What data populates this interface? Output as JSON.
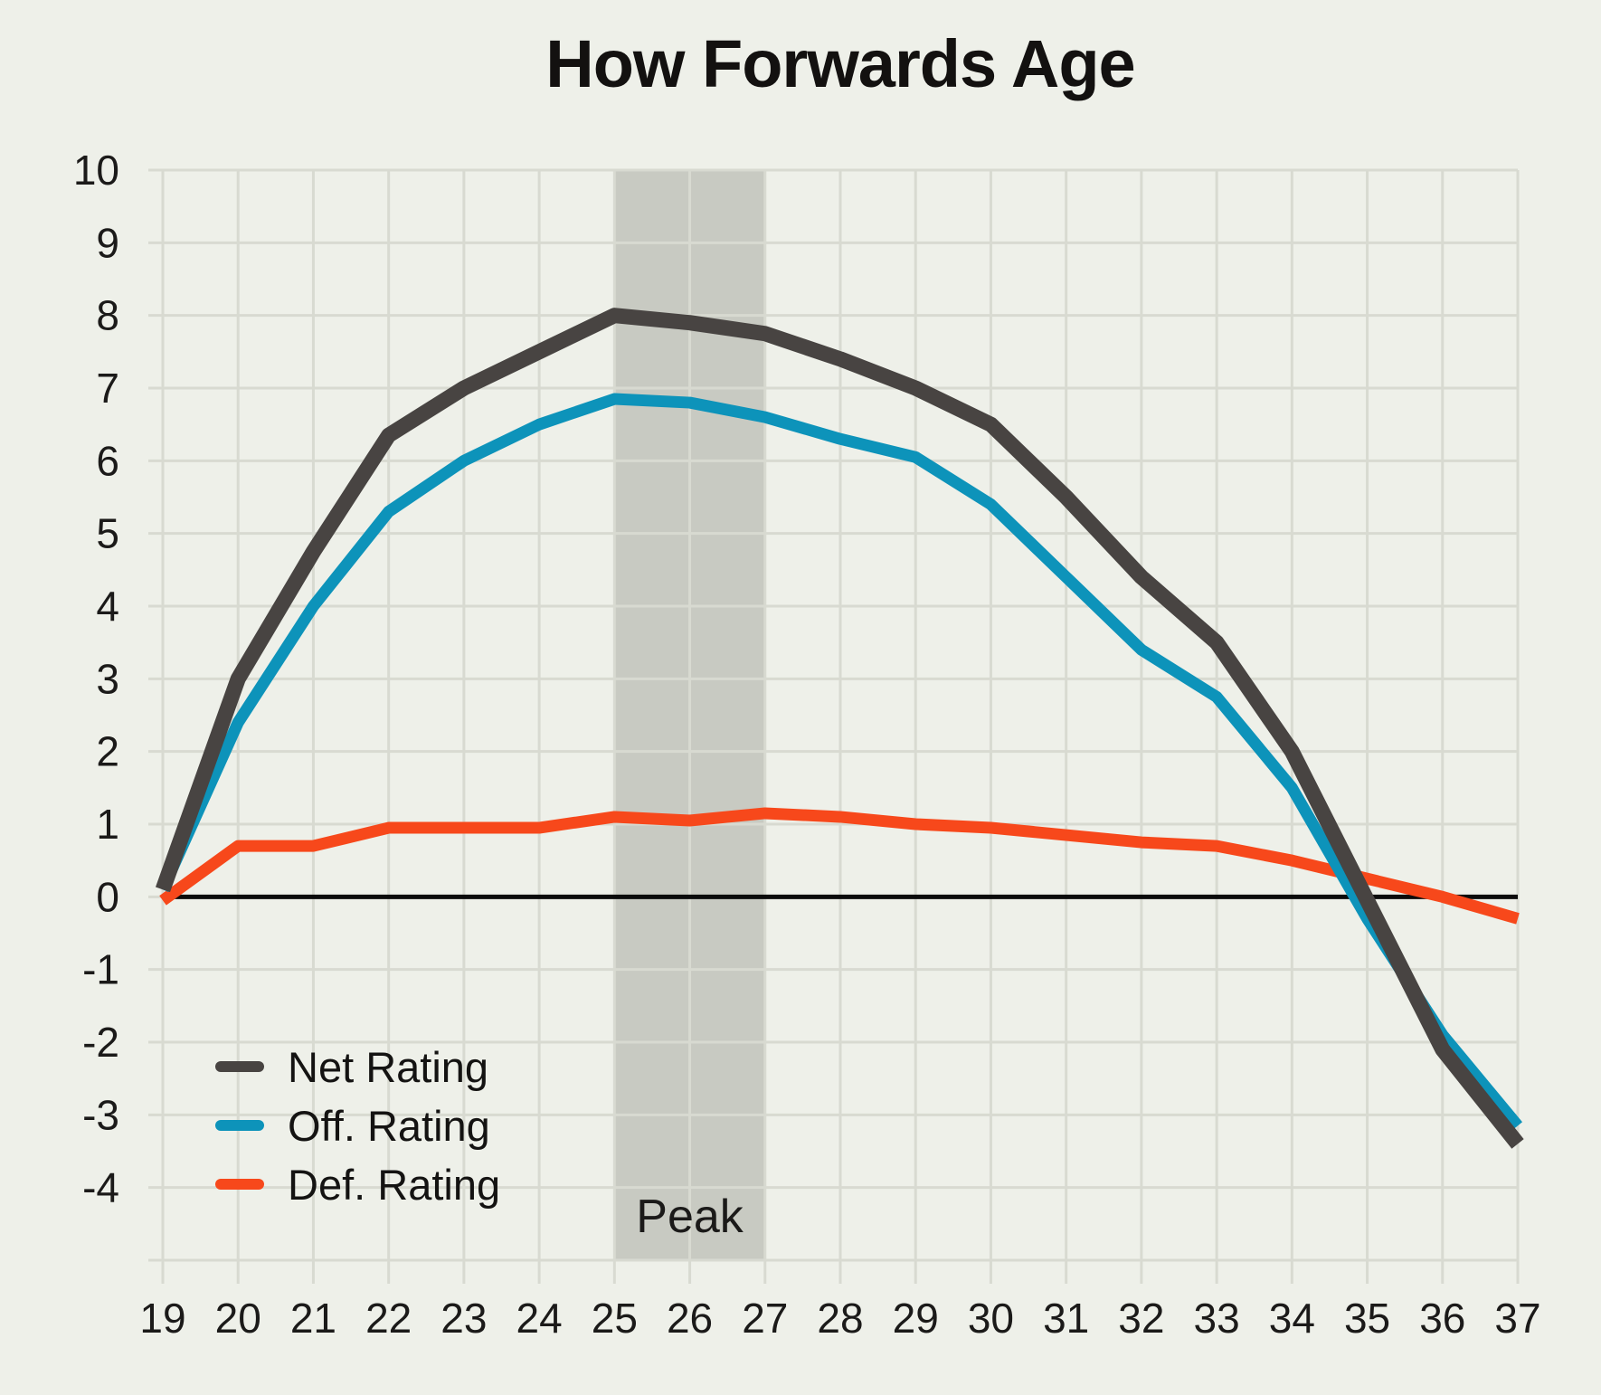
{
  "title": "How Forwards Age",
  "legend": {
    "items": [
      {
        "label": "Net Rating"
      },
      {
        "label": "Off. Rating"
      },
      {
        "label": "Def. Rating"
      }
    ]
  },
  "chart_data": {
    "type": "line",
    "title": "How Forwards Age",
    "x": [
      19,
      20,
      21,
      22,
      23,
      24,
      25,
      26,
      27,
      28,
      29,
      30,
      31,
      32,
      33,
      34,
      35,
      36,
      37
    ],
    "x_tick_labels": [
      "19",
      "20",
      "21",
      "22",
      "23",
      "24",
      "25",
      "26",
      "27",
      "28",
      "29",
      "30",
      "31",
      "32",
      "33",
      "34",
      "35",
      "36",
      "37"
    ],
    "y_tick_labels": [
      "10",
      "9",
      "8",
      "7",
      "6",
      "5",
      "4",
      "3",
      "2",
      "1",
      "0",
      "-1",
      "-2",
      "-3",
      "-4"
    ],
    "y_tick_values": [
      10,
      9,
      8,
      7,
      6,
      5,
      4,
      3,
      2,
      1,
      0,
      -1,
      -2,
      -3,
      -4
    ],
    "ylim": [
      -5,
      10
    ],
    "xlim": [
      19,
      37
    ],
    "grid": true,
    "legend_position": "bottom-left",
    "series": [
      {
        "name": "Net Rating",
        "color": "#484442",
        "stroke_width": 17,
        "values": [
          0.1,
          3.0,
          4.75,
          6.35,
          7.0,
          7.5,
          8.0,
          7.9,
          7.75,
          7.4,
          7.0,
          6.5,
          5.5,
          4.4,
          3.5,
          2.0,
          -0.05,
          -2.1,
          -3.4
        ]
      },
      {
        "name": "Off. Rating",
        "color": "#0d93ba",
        "stroke_width": 13,
        "values": [
          0.1,
          2.4,
          4.0,
          5.3,
          6.0,
          6.5,
          6.85,
          6.8,
          6.6,
          6.3,
          6.05,
          5.4,
          4.4,
          3.4,
          2.75,
          1.5,
          -0.3,
          -1.9,
          -3.15
        ]
      },
      {
        "name": "Def. Rating",
        "color": "#f7481b",
        "stroke_width": 13,
        "values": [
          -0.05,
          0.7,
          0.7,
          0.95,
          0.95,
          0.95,
          1.1,
          1.05,
          1.15,
          1.1,
          1.0,
          0.95,
          0.85,
          0.75,
          0.7,
          0.5,
          0.25,
          0.0,
          -0.3
        ]
      }
    ],
    "band": {
      "from": 25,
      "to": 27,
      "label": "Peak"
    },
    "zero_line": true,
    "colors": {
      "background": "#eef0e9",
      "grid": "#d8dad1",
      "band": "#c8cac2",
      "zero_line": "#0b0b0b",
      "text": "#1b1a19"
    }
  }
}
